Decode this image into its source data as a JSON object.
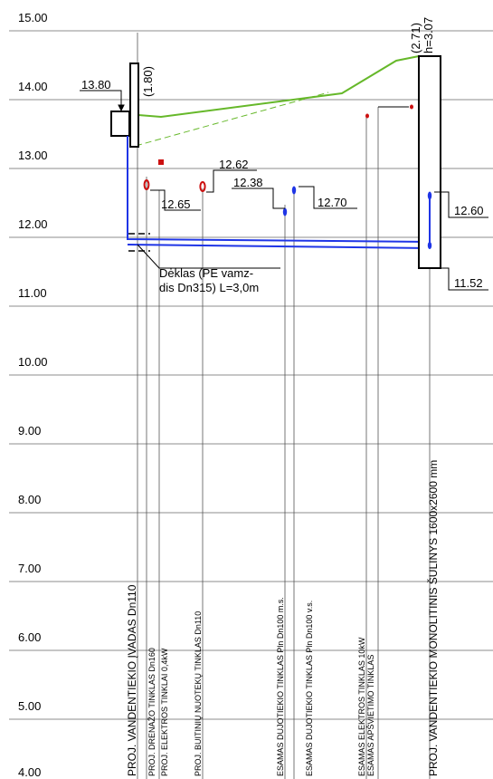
{
  "elevation_axis": {
    "labels": [
      "15.00",
      "14.00",
      "13.00",
      "12.00",
      "11.00",
      "10.00",
      "9.00",
      "8.00",
      "7.00",
      "6.00",
      "5.00",
      "4.00"
    ],
    "values": [
      15,
      14,
      13,
      12,
      11,
      10,
      9,
      8,
      7,
      6,
      5,
      4
    ]
  },
  "annotations": {
    "vandentiekio_ivado_virsus": "13.80",
    "ivado_gylis": "(1.80)",
    "dujotiekio_ms": "12.38",
    "dujotiekio_vs": "12.70",
    "elektros_04kw": "12.65",
    "buitiniu_nuoteku": "12.62",
    "sulinio_ivadas": "12.60",
    "sulinio_dugnas": "11.52",
    "sulinio_gylis": "(2.71)",
    "sulinio_h": "h=3.07",
    "deklas_1": "Dėklas (PE vamz-",
    "deklas_2": "dis Dn315) L=3,0m"
  },
  "vertical_labels": {
    "vandens_ivadas": "PROJ. VANDENTIEKIO ĮVADAS Dn110",
    "drenazas": "PROJ. DRENAŽO TINKLAS Dn160",
    "elektros": "PROJ. ELEKTROS TINKLAI 0,4kW",
    "nuotekos": "PROJ. BUITINIŲ NUOTEKŲ TINKLAS Dn110",
    "dujos_ms": "ESAMAS DUJOTIEKIO TINKLAS Pln Dn100 m.s.",
    "dujos_vs": "ESAMAS DUJOTIEKIO TINKLAS Pln Dn100 v.s.",
    "elektros_10kw": "ESAMAS ELEKTROS TINKLAS 10kW",
    "apsvietimas": "ESAMAS APŠVIETIMO TINKLAS",
    "sulinys": "PROJ. VANDENTIEKIO MONOLITINIS ŠULINYS 1600x2600 mm"
  },
  "colors": {
    "grid": "#666666",
    "terrain": "#66b82a",
    "pipe": "#1f35e6",
    "cable": "#cc1010",
    "outline": "#000000"
  }
}
